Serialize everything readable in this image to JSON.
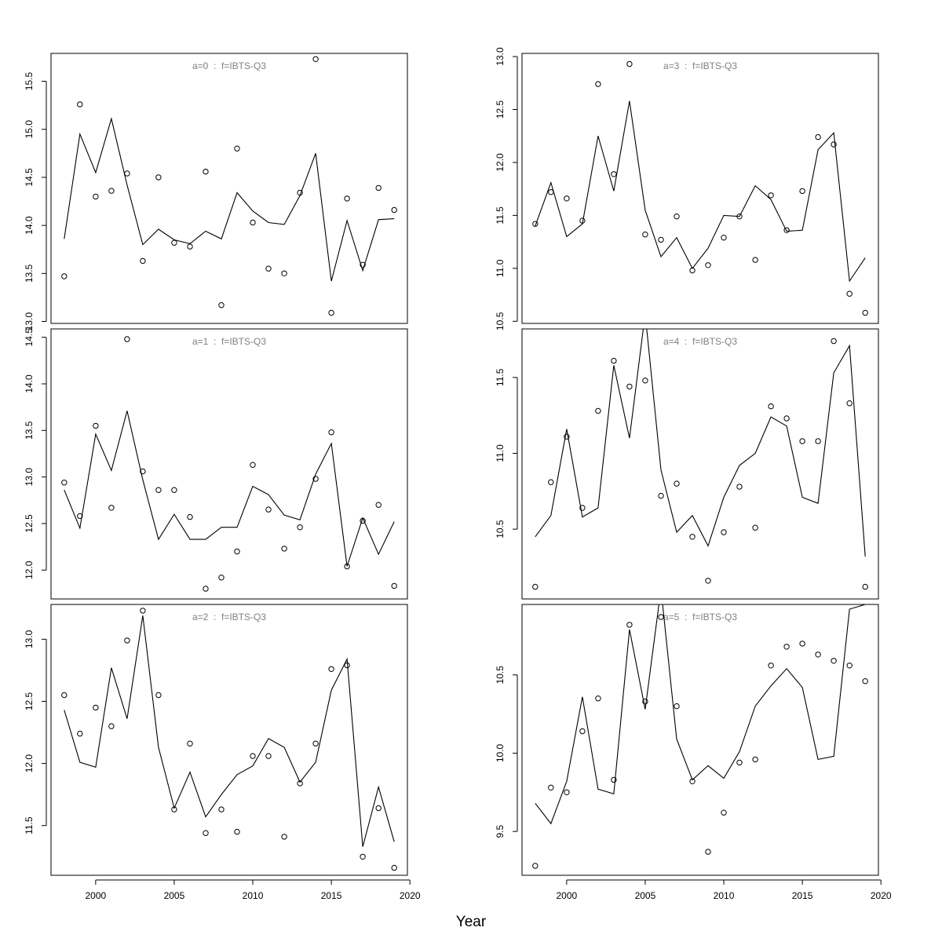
{
  "figure": {
    "xlabel": "Year",
    "x_ticks": [
      2000,
      2005,
      2010,
      2015,
      2020
    ]
  },
  "chart_data": [
    {
      "type": "line",
      "title": "a=0  :  f=IBTS-Q3",
      "x": [
        1998,
        1999,
        2000,
        2001,
        2002,
        2003,
        2004,
        2005,
        2006,
        2007,
        2008,
        2009,
        2010,
        2011,
        2012,
        2013,
        2014,
        2015,
        2016,
        2017,
        2018,
        2019
      ],
      "series": [
        {
          "kind": "fitted",
          "values": [
            13.86,
            14.95,
            14.55,
            15.11,
            14.42,
            13.8,
            13.96,
            13.85,
            13.81,
            13.94,
            13.86,
            14.34,
            14.15,
            14.03,
            14.01,
            14.31,
            14.75,
            13.42,
            14.05,
            13.53,
            14.06,
            14.07
          ]
        },
        {
          "kind": "observed",
          "values": [
            13.47,
            15.26,
            14.3,
            14.36,
            14.54,
            13.63,
            14.5,
            13.82,
            13.78,
            14.56,
            13.17,
            14.8,
            14.03,
            13.55,
            13.5,
            14.34,
            15.73,
            13.09,
            14.28,
            13.59,
            14.39,
            14.16
          ]
        }
      ],
      "y_ticks": [
        "13.0",
        "13.5",
        "14.0",
        "14.5",
        "15.0",
        "15.5"
      ],
      "ylim": [
        12.98,
        15.79
      ],
      "xlim": [
        1997.16,
        2019.84
      ]
    },
    {
      "type": "line",
      "title": "a=3  :  f=IBTS-Q3",
      "x": [
        1998,
        1999,
        2000,
        2001,
        2002,
        2003,
        2004,
        2005,
        2006,
        2007,
        2008,
        2009,
        2010,
        2011,
        2012,
        2013,
        2014,
        2015,
        2016,
        2017,
        2018,
        2019
      ],
      "series": [
        {
          "kind": "fitted",
          "values": [
            11.4,
            11.81,
            11.3,
            11.42,
            12.25,
            11.73,
            12.58,
            11.55,
            11.11,
            11.29,
            11.0,
            11.19,
            11.5,
            11.49,
            11.78,
            11.65,
            11.35,
            11.36,
            12.12,
            12.28,
            10.88,
            11.1
          ]
        },
        {
          "kind": "observed",
          "values": [
            11.42,
            11.72,
            11.66,
            11.45,
            12.74,
            11.89,
            12.93,
            11.32,
            11.27,
            11.49,
            10.98,
            11.03,
            11.29,
            11.49,
            11.08,
            11.69,
            11.36,
            11.73,
            12.24,
            12.17,
            10.76,
            10.58
          ]
        }
      ],
      "y_ticks": [
        "10.5",
        "11.0",
        "11.5",
        "12.0",
        "12.5",
        "13.0"
      ],
      "ylim": [
        10.48,
        13.03
      ],
      "xlim": [
        1997.16,
        2019.84
      ]
    },
    {
      "type": "line",
      "title": "a=1  :  f=IBTS-Q3",
      "x": [
        1998,
        1999,
        2000,
        2001,
        2002,
        2003,
        2004,
        2005,
        2006,
        2007,
        2008,
        2009,
        2010,
        2011,
        2012,
        2013,
        2014,
        2015,
        2016,
        2017,
        2018,
        2019
      ],
      "series": [
        {
          "kind": "fitted",
          "values": [
            12.86,
            12.45,
            13.46,
            13.07,
            13.71,
            12.97,
            12.33,
            12.6,
            12.33,
            12.33,
            12.46,
            12.46,
            12.9,
            12.81,
            12.59,
            12.54,
            13.03,
            13.36,
            12.04,
            12.56,
            12.17,
            12.52
          ]
        },
        {
          "kind": "observed",
          "values": [
            12.94,
            12.58,
            13.55,
            12.67,
            14.48,
            13.06,
            12.86,
            12.86,
            12.57,
            11.8,
            11.92,
            12.2,
            13.13,
            12.65,
            12.23,
            12.46,
            12.98,
            13.48,
            12.04,
            12.53,
            12.7,
            11.83
          ]
        }
      ],
      "y_ticks": [
        "12.0",
        "12.5",
        "13.0",
        "13.5",
        "14.0",
        "14.5"
      ],
      "ylim": [
        11.69,
        14.59
      ],
      "xlim": [
        1997.16,
        2019.84
      ]
    },
    {
      "type": "line",
      "title": "a=4  :  f=IBTS-Q3",
      "x": [
        1998,
        1999,
        2000,
        2001,
        2002,
        2003,
        2004,
        2005,
        2006,
        2007,
        2008,
        2009,
        2010,
        2011,
        2012,
        2013,
        2014,
        2015,
        2016,
        2017,
        2018,
        2019
      ],
      "series": [
        {
          "kind": "fitted",
          "values": [
            10.45,
            10.59,
            11.16,
            10.58,
            10.64,
            11.58,
            11.1,
            11.92,
            10.89,
            10.48,
            10.59,
            10.39,
            10.71,
            10.92,
            11.0,
            11.24,
            11.18,
            10.71,
            10.67,
            11.53,
            11.71,
            10.32
          ]
        },
        {
          "kind": "observed",
          "values": [
            10.12,
            10.81,
            11.11,
            10.64,
            11.28,
            11.61,
            11.44,
            11.48,
            10.72,
            10.8,
            10.45,
            10.16,
            10.48,
            10.78,
            10.51,
            11.31,
            11.23,
            11.08,
            11.08,
            11.74,
            11.33,
            10.12
          ]
        }
      ],
      "y_ticks": [
        "10.5",
        "11.0",
        "11.5"
      ],
      "ylim": [
        10.04,
        11.82
      ],
      "xlim": [
        1997.16,
        2019.84
      ]
    },
    {
      "type": "line",
      "title": "a=2  :  f=IBTS-Q3",
      "x": [
        1998,
        1999,
        2000,
        2001,
        2002,
        2003,
        2004,
        2005,
        2006,
        2007,
        2008,
        2009,
        2010,
        2011,
        2012,
        2013,
        2014,
        2015,
        2016,
        2017,
        2018,
        2019
      ],
      "series": [
        {
          "kind": "fitted",
          "values": [
            12.43,
            12.01,
            11.97,
            12.77,
            12.36,
            13.19,
            12.13,
            11.64,
            11.93,
            11.57,
            11.75,
            11.91,
            11.98,
            12.2,
            12.13,
            11.85,
            12.01,
            12.59,
            12.84,
            11.33,
            11.81,
            11.37
          ]
        },
        {
          "kind": "observed",
          "values": [
            12.55,
            12.24,
            12.45,
            12.3,
            12.99,
            13.23,
            12.55,
            11.63,
            12.16,
            11.44,
            11.63,
            11.45,
            12.06,
            12.06,
            11.41,
            11.84,
            12.16,
            12.76,
            12.79,
            11.25,
            11.64,
            11.16
          ]
        }
      ],
      "y_ticks": [
        "11.5",
        "12.0",
        "12.5",
        "13.0"
      ],
      "ylim": [
        11.1,
        13.28
      ],
      "xlim": [
        1997.16,
        2019.84
      ]
    },
    {
      "type": "line",
      "title": "a=5  :  f=IBTS-Q3",
      "x": [
        1998,
        1999,
        2000,
        2001,
        2002,
        2003,
        2004,
        2005,
        2006,
        2007,
        2008,
        2009,
        2010,
        2011,
        2012,
        2013,
        2014,
        2015,
        2016,
        2017,
        2018,
        2019
      ],
      "series": [
        {
          "kind": "fitted",
          "values": [
            9.68,
            9.55,
            9.82,
            10.36,
            9.77,
            9.74,
            10.79,
            10.28,
            11.05,
            10.09,
            9.83,
            9.92,
            9.84,
            10.01,
            10.3,
            10.43,
            10.54,
            10.42,
            9.96,
            9.98,
            10.92,
            10.95
          ]
        },
        {
          "kind": "observed",
          "values": [
            9.28,
            9.78,
            9.75,
            10.14,
            10.35,
            9.83,
            10.82,
            10.33,
            10.87,
            10.3,
            9.82,
            9.37,
            9.62,
            9.94,
            9.96,
            10.56,
            10.68,
            10.7,
            10.63,
            10.59,
            10.56,
            10.46
          ]
        }
      ],
      "y_ticks": [
        "9.5",
        "10.0",
        "10.5"
      ],
      "ylim": [
        9.22,
        10.95
      ],
      "xlim": [
        1997.16,
        2019.84
      ]
    }
  ]
}
